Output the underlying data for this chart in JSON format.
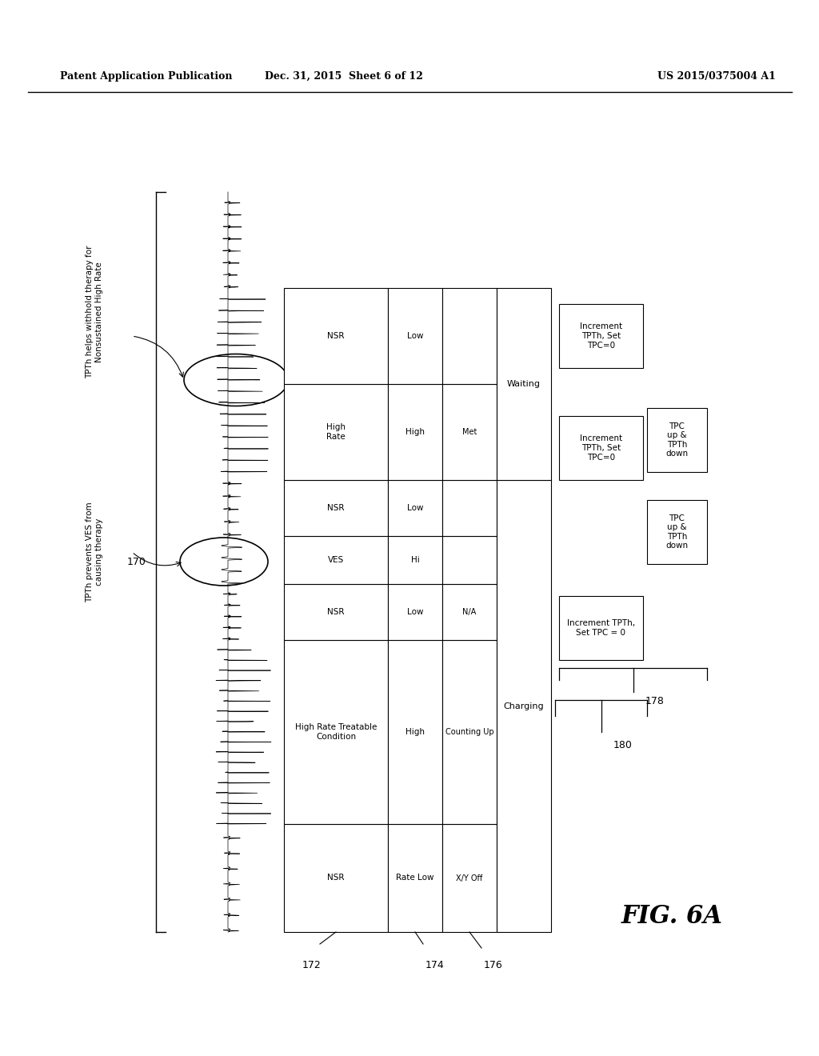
{
  "header_left": "Patent Application Publication",
  "header_mid": "Dec. 31, 2015  Sheet 6 of 12",
  "header_right": "US 2015/0375004 A1",
  "fig_label": "FIG. 6A",
  "label_170": "170",
  "label_172": "172",
  "label_174": "174",
  "label_176": "176",
  "label_178": "178",
  "label_180": "180",
  "ann1": "TPTh helps withhold therapy for\nNonsustained High Rate",
  "ann2": "TPTh prevents VES from\ncausing therapy",
  "col1_label": "NSR",
  "col2_label": "High Rate Treatable\nCondition",
  "col3_label": "NSR",
  "col4_label": "VES",
  "col5_label": "NSR",
  "col6_label": "High\nRate",
  "col7_label": "NSR",
  "rate_labels": [
    "Rate Low",
    "High",
    "Low",
    "Hi",
    "Low",
    "High",
    "Low"
  ],
  "xy_labels": [
    "X/Y Off",
    "Counting Up",
    "N/A",
    "",
    "N/A",
    "Met",
    ""
  ],
  "charge_label": "Charging",
  "wait_label": "Waiting",
  "box1": "Increment TPTh,\nSet TPC = 0",
  "box2": "TPC\nup &\nTPTh\ndown",
  "box3": "Increment\nTPTh, Set\nTPC=0",
  "box4": "TPC\nup &\nTPTh\ndown",
  "box5": "Increment\nTPTh, Set\nTPC=0"
}
